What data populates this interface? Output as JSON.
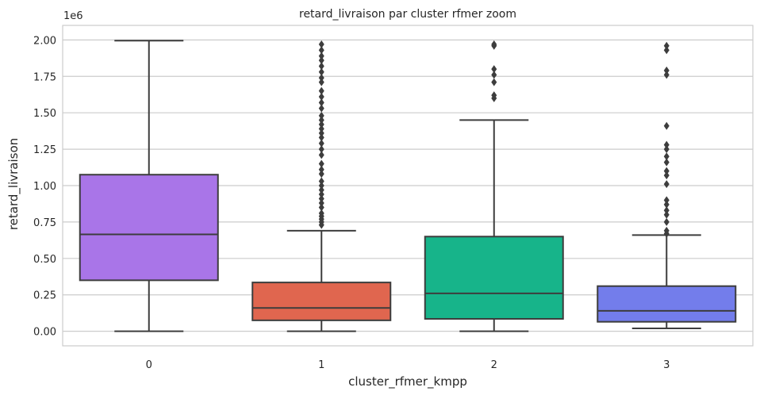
{
  "chart_data": {
    "type": "boxplot",
    "title": "retard_livraison par cluster rfmer zoom",
    "xlabel": "cluster_rfmer_kmpp",
    "ylabel": "retard_livraison",
    "y_offset_label": "1e6",
    "ylim": [
      -0.1,
      2.1
    ],
    "yticks": [
      0.0,
      0.25,
      0.5,
      0.75,
      1.0,
      1.25,
      1.5,
      1.75,
      2.0
    ],
    "ytick_labels": [
      "0.00",
      "0.25",
      "0.50",
      "0.75",
      "1.00",
      "1.25",
      "1.50",
      "1.75",
      "2.00"
    ],
    "grid": true,
    "categories": [
      "0",
      "1",
      "2",
      "3"
    ],
    "colors": [
      "#a975e8",
      "#e0664f",
      "#17b48a",
      "#737deb"
    ],
    "boxes": [
      {
        "category": "0",
        "whisker_low": 0.0,
        "q1": 0.35,
        "median": 0.665,
        "q3": 1.075,
        "whisker_high": 1.995,
        "outliers": []
      },
      {
        "category": "1",
        "whisker_low": 0.0,
        "q1": 0.075,
        "median": 0.16,
        "q3": 0.335,
        "whisker_high": 0.69,
        "outliers": [
          0.73,
          0.75,
          0.77,
          0.79,
          0.81,
          0.85,
          0.88,
          0.91,
          0.94,
          0.97,
          1.0,
          1.03,
          1.08,
          1.11,
          1.15,
          1.21,
          1.25,
          1.29,
          1.33,
          1.36,
          1.39,
          1.42,
          1.45,
          1.48,
          1.53,
          1.57,
          1.61,
          1.65,
          1.71,
          1.74,
          1.78,
          1.82,
          1.86,
          1.89,
          1.93,
          1.97
        ]
      },
      {
        "category": "2",
        "whisker_low": 0.0,
        "q1": 0.085,
        "median": 0.26,
        "q3": 0.65,
        "whisker_high": 1.45,
        "outliers": [
          1.6,
          1.62,
          1.71,
          1.76,
          1.8,
          1.96,
          1.97
        ]
      },
      {
        "category": "3",
        "whisker_low": 0.02,
        "q1": 0.065,
        "median": 0.14,
        "q3": 0.31,
        "whisker_high": 0.66,
        "outliers": [
          0.67,
          0.69,
          0.75,
          0.8,
          0.83,
          0.87,
          0.9,
          1.01,
          1.07,
          1.1,
          1.16,
          1.2,
          1.25,
          1.28,
          1.41,
          1.76,
          1.79,
          1.93,
          1.96
        ]
      }
    ]
  }
}
